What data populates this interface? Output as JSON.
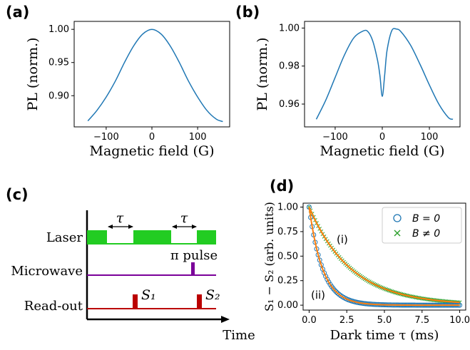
{
  "panels": {
    "a": "(a)",
    "b": "(b)",
    "c": "(c)",
    "d": "(d)"
  },
  "colors": {
    "line_blue": "#1f77b4",
    "fit_orange": "#ff7f0e",
    "green": "#2ca02c",
    "laser_green": "#22cc22",
    "microwave_purple": "#7b0099",
    "readout_red": "#bb0000"
  },
  "chart_data": [
    {
      "id": "a",
      "type": "line",
      "xlabel": "Magnetic field (G)",
      "ylabel": "PL (norm.)",
      "xticks": [
        "−100",
        "0",
        "100"
      ],
      "yticks": [
        "0.90",
        "0.95",
        "1.00"
      ],
      "xlim": [
        -170,
        170
      ],
      "ylim": [
        0.853,
        1.012
      ],
      "x": [
        -140,
        -120,
        -100,
        -80,
        -60,
        -40,
        -20,
        0,
        20,
        40,
        60,
        80,
        100,
        120,
        140,
        155
      ],
      "y": [
        0.862,
        0.878,
        0.898,
        0.922,
        0.95,
        0.975,
        0.993,
        1.0,
        0.993,
        0.975,
        0.95,
        0.922,
        0.898,
        0.878,
        0.865,
        0.861
      ]
    },
    {
      "id": "b",
      "type": "line",
      "xlabel": "Magnetic field (G)",
      "ylabel": "PL (norm.)",
      "xticks": [
        "−100",
        "0",
        "100"
      ],
      "yticks": [
        "0.96",
        "0.98",
        "1.00"
      ],
      "xlim": [
        -165,
        165
      ],
      "ylim": [
        0.948,
        1.0035
      ],
      "x": [
        -140,
        -120,
        -100,
        -80,
        -60,
        -40,
        -30,
        -20,
        -10,
        -5,
        0,
        5,
        10,
        20,
        30,
        40,
        60,
        80,
        100,
        120,
        140,
        150
      ],
      "y": [
        0.952,
        0.962,
        0.974,
        0.986,
        0.995,
        0.9985,
        0.998,
        0.993,
        0.983,
        0.975,
        0.964,
        0.975,
        0.988,
        0.9985,
        0.9995,
        0.998,
        0.991,
        0.981,
        0.97,
        0.96,
        0.953,
        0.952
      ]
    },
    {
      "id": "d",
      "type": "scatter",
      "xlabel": "Dark time τ (ms)",
      "ylabel": "S₁ − S₂ (arb. units)",
      "xticks": [
        "0.0",
        "2.5",
        "5.0",
        "7.5",
        "10.0"
      ],
      "yticks": [
        "0.00",
        "0.25",
        "0.50",
        "0.75",
        "1.00"
      ],
      "xlim": [
        -0.4,
        10.4
      ],
      "ylim": [
        -0.05,
        1.04
      ],
      "series": [
        {
          "name": "B = 0",
          "marker": "circle",
          "tau_ms": 0.9
        },
        {
          "name": "B ≠ 0",
          "marker": "x",
          "tau_ms": 2.8
        }
      ],
      "annotations": [
        "(i)",
        "(ii)"
      ]
    }
  ],
  "legend": {
    "entry1": "B = 0",
    "entry2": "B ≠ 0"
  },
  "sequence": {
    "rows": [
      "Laser",
      "Microwave",
      "Read-out"
    ],
    "tau": "τ",
    "pi_pulse": "π pulse",
    "s1": "S₁",
    "s2": "S₂",
    "time": "Time"
  }
}
